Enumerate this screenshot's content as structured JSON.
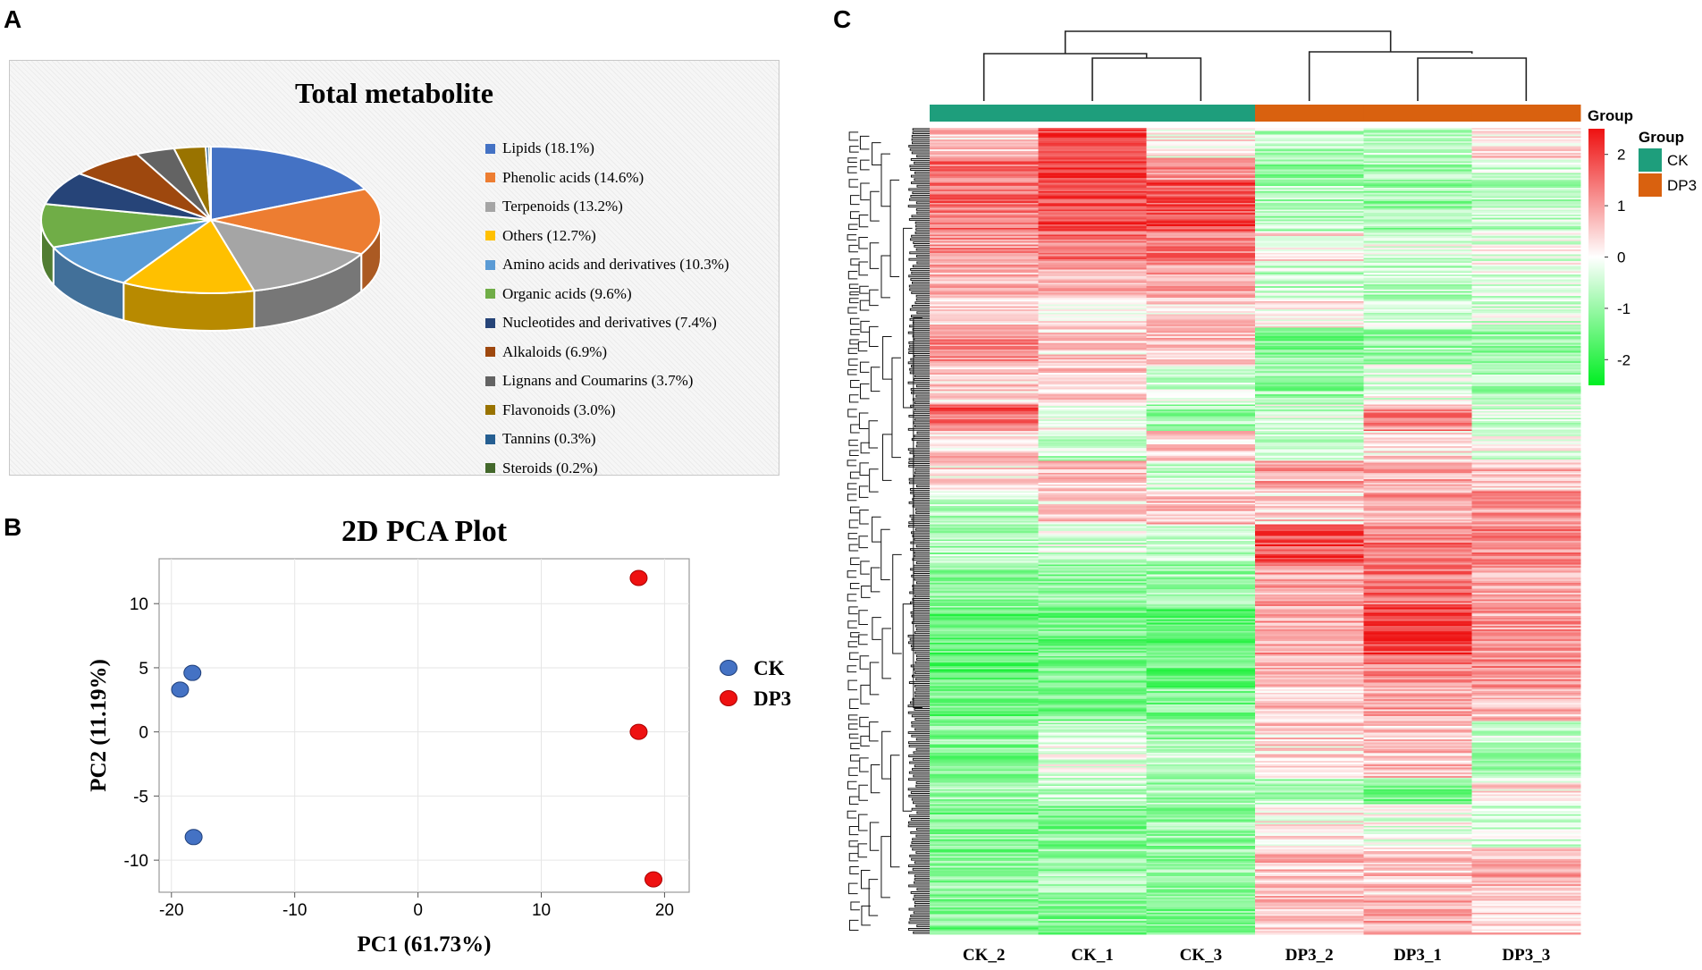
{
  "panels": {
    "a": "A",
    "b": "B",
    "c": "C"
  },
  "chart_data": [
    {
      "type": "pie",
      "title": "Total metabolite",
      "slices": [
        {
          "label": "Lipids (18.1%)",
          "value": 18.1,
          "color": "#4472C4"
        },
        {
          "label": "Phenolic acids (14.6%)",
          "value": 14.6,
          "color": "#ED7D31"
        },
        {
          "label": "Terpenoids (13.2%)",
          "value": 13.2,
          "color": "#A5A5A5"
        },
        {
          "label": "Others (12.7%)",
          "value": 12.7,
          "color": "#FFC000"
        },
        {
          "label": "Amino acids and derivatives (10.3%)",
          "value": 10.3,
          "color": "#5B9BD5"
        },
        {
          "label": "Organic acids (9.6%)",
          "value": 9.6,
          "color": "#70AD47"
        },
        {
          "label": "Nucleotides and derivatives (7.4%)",
          "value": 7.4,
          "color": "#264478"
        },
        {
          "label": "Alkaloids (6.9%)",
          "value": 6.9,
          "color": "#9E480E"
        },
        {
          "label": "Lignans and Coumarins (3.7%)",
          "value": 3.7,
          "color": "#636363"
        },
        {
          "label": "Flavonoids (3.0%)",
          "value": 3.0,
          "color": "#997300"
        },
        {
          "label": "Tannins (0.3%)",
          "value": 0.3,
          "color": "#255E91"
        },
        {
          "label": "Steroids (0.2%)",
          "value": 0.2,
          "color": "#43682B"
        }
      ]
    },
    {
      "type": "scatter",
      "title": "2D PCA Plot",
      "xlabel": "PC1 (61.73%)",
      "ylabel": "PC2 (11.19%)",
      "xlim": [
        -21,
        22
      ],
      "ylim": [
        -12.5,
        13.5
      ],
      "xticks": [
        -20,
        -10,
        0,
        10,
        20
      ],
      "yticks": [
        10,
        5,
        0,
        -5,
        -10
      ],
      "grid": true,
      "legend_position": "right",
      "series": [
        {
          "name": "CK",
          "color": "#4472C4",
          "points": [
            [
              -19.3,
              3.3
            ],
            [
              -18.3,
              4.6
            ],
            [
              -18.2,
              -8.2
            ]
          ]
        },
        {
          "name": "DP3",
          "color": "#EE1111",
          "points": [
            [
              17.9,
              12.0
            ],
            [
              17.9,
              0.0
            ],
            [
              19.1,
              -11.5
            ]
          ]
        }
      ]
    },
    {
      "type": "heatmap",
      "columns": [
        "CK_2",
        "CK_1",
        "CK_3",
        "DP3_2",
        "DP3_1",
        "DP3_3"
      ],
      "groups": [
        "CK",
        "CK",
        "CK",
        "DP3",
        "DP3",
        "DP3"
      ],
      "annotation_title": "Group",
      "legend_title": "Group",
      "group_colors": {
        "CK": "#1E9E7C",
        "DP3": "#D9610F"
      },
      "color_scale": {
        "min": -2.5,
        "max": 2.5,
        "low": "#00EE22",
        "mid": "#FFFFFF",
        "high": "#EE1111"
      },
      "scale_ticks": [
        2,
        1,
        0,
        -1,
        -2
      ],
      "row_bands": [
        {
          "rows": 18,
          "values": [
            0.5,
            2.0,
            0.2,
            -0.6,
            -0.6,
            0.4
          ]
        },
        {
          "rows": 14,
          "values": [
            1.5,
            2.0,
            1.2,
            -1.0,
            -0.9,
            -0.5
          ]
        },
        {
          "rows": 30,
          "values": [
            1.5,
            2.0,
            1.8,
            -0.8,
            -1.0,
            -0.6
          ]
        },
        {
          "rows": 20,
          "values": [
            1.0,
            1.5,
            1.4,
            0.2,
            -0.3,
            -0.2
          ]
        },
        {
          "rows": 20,
          "values": [
            0.9,
            0.8,
            1.1,
            -0.5,
            -0.6,
            -0.3
          ]
        },
        {
          "rows": 18,
          "values": [
            0.5,
            0.3,
            0.4,
            0.2,
            -0.5,
            -0.3
          ]
        },
        {
          "rows": 22,
          "values": [
            1.3,
            0.4,
            0.7,
            -1.2,
            -0.9,
            -1.0
          ]
        },
        {
          "rows": 24,
          "values": [
            0.4,
            0.4,
            -0.4,
            -1.0,
            -0.2,
            -0.8
          ]
        },
        {
          "rows": 16,
          "values": [
            1.6,
            0.1,
            -0.9,
            -0.4,
            1.2,
            -0.5
          ]
        },
        {
          "rows": 18,
          "values": [
            0.5,
            -0.5,
            0.6,
            -0.5,
            0.3,
            -0.2
          ]
        },
        {
          "rows": 18,
          "values": [
            0.3,
            0.5,
            -0.4,
            0.9,
            0.8,
            0.6
          ]
        },
        {
          "rows": 20,
          "values": [
            -0.6,
            0.4,
            0.6,
            0.4,
            0.9,
            1.1
          ]
        },
        {
          "rows": 24,
          "values": [
            -0.8,
            -0.4,
            -0.6,
            1.8,
            1.4,
            1.2
          ]
        },
        {
          "rows": 26,
          "values": [
            -1.2,
            -1.0,
            -0.9,
            1.0,
            1.4,
            0.9
          ]
        },
        {
          "rows": 28,
          "values": [
            -1.5,
            -1.3,
            -1.6,
            1.0,
            2.0,
            1.0
          ]
        },
        {
          "rows": 20,
          "values": [
            -1.6,
            -1.2,
            -1.5,
            0.9,
            1.3,
            1.2
          ]
        },
        {
          "rows": 20,
          "values": [
            -1.4,
            -1.3,
            -1.2,
            0.6,
            0.9,
            0.8
          ]
        },
        {
          "rows": 14,
          "values": [
            -1.2,
            -0.6,
            -1.0,
            0.4,
            0.5,
            -0.6
          ]
        },
        {
          "rows": 20,
          "values": [
            -1.2,
            -0.2,
            -0.5,
            0.3,
            0.6,
            -0.9
          ]
        },
        {
          "rows": 16,
          "values": [
            -1.0,
            -0.6,
            -0.8,
            -0.8,
            -1.3,
            0.2
          ]
        },
        {
          "rows": 26,
          "values": [
            -1.2,
            -1.2,
            -1.0,
            0.1,
            -0.2,
            -0.4
          ]
        },
        {
          "rows": 28,
          "values": [
            -1.2,
            -1.0,
            -1.0,
            0.6,
            0.6,
            0.8
          ]
        },
        {
          "rows": 24,
          "values": [
            -1.3,
            -1.2,
            -1.2,
            0.7,
            0.8,
            0.6
          ]
        }
      ]
    }
  ]
}
